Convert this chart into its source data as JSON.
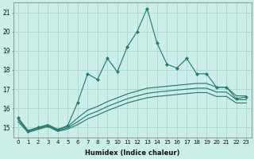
{
  "xlabel": "Humidex (Indice chaleur)",
  "bg_color": "#cceee8",
  "grid_color": "#a8d8d0",
  "line_color": "#2a7a70",
  "x": [
    0,
    1,
    2,
    3,
    4,
    5,
    6,
    7,
    8,
    9,
    10,
    11,
    12,
    13,
    14,
    15,
    16,
    17,
    18,
    19,
    20,
    21,
    22,
    23
  ],
  "y_main": [
    15.5,
    14.8,
    15.0,
    15.1,
    14.9,
    15.1,
    16.3,
    17.8,
    17.5,
    18.6,
    17.9,
    19.2,
    20.0,
    21.2,
    19.4,
    18.3,
    18.1,
    18.6,
    17.8,
    17.8,
    17.1,
    17.1,
    16.5,
    16.6
  ],
  "y_c1": [
    15.5,
    14.85,
    15.0,
    15.15,
    14.9,
    15.05,
    15.5,
    15.9,
    16.1,
    16.35,
    16.55,
    16.75,
    16.9,
    17.05,
    17.1,
    17.15,
    17.2,
    17.25,
    17.3,
    17.3,
    17.1,
    17.1,
    16.65,
    16.65
  ],
  "y_c2": [
    15.4,
    14.8,
    14.95,
    15.1,
    14.85,
    14.98,
    15.3,
    15.65,
    15.85,
    16.1,
    16.3,
    16.5,
    16.65,
    16.78,
    16.85,
    16.9,
    16.95,
    17.0,
    17.05,
    17.05,
    16.85,
    16.85,
    16.45,
    16.45
  ],
  "y_c3": [
    15.3,
    14.75,
    14.9,
    15.05,
    14.8,
    14.92,
    15.15,
    15.45,
    15.65,
    15.88,
    16.08,
    16.28,
    16.42,
    16.55,
    16.62,
    16.67,
    16.72,
    16.77,
    16.82,
    16.82,
    16.62,
    16.62,
    16.28,
    16.28
  ],
  "ylim": [
    14.5,
    21.5
  ],
  "xlim": [
    -0.5,
    23.5
  ],
  "yticks": [
    15,
    16,
    17,
    18,
    19,
    20,
    21
  ],
  "xticks": [
    0,
    1,
    2,
    3,
    4,
    5,
    6,
    7,
    8,
    9,
    10,
    11,
    12,
    13,
    14,
    15,
    16,
    17,
    18,
    19,
    20,
    21,
    22,
    23
  ],
  "ylabel_fontsize": 5.5,
  "xlabel_fontsize": 6.0,
  "tick_fontsize": 5.0
}
